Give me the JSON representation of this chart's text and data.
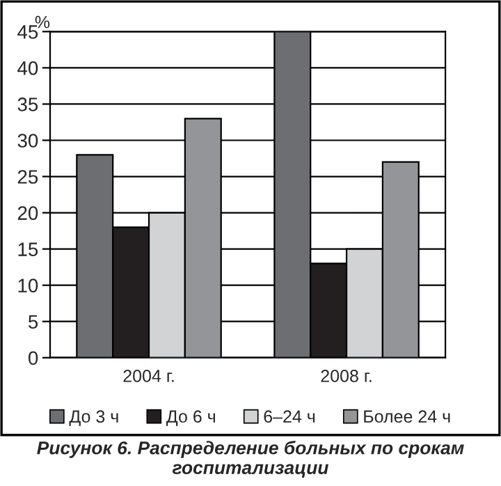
{
  "chart_data": {
    "type": "bar",
    "title": "Рисунок 6. Распределение больных по срокам госпитализации",
    "ylabel": "%",
    "categories": [
      "2004 г.",
      "2008 г."
    ],
    "series": [
      {
        "name": "До 3 ч",
        "color": "#6d6e71",
        "values": [
          28,
          45
        ]
      },
      {
        "name": "До 6 ч",
        "color": "#231f20",
        "values": [
          18,
          13
        ]
      },
      {
        "name": "6–24 ч",
        "color": "#d1d3d4",
        "values": [
          20,
          15
        ]
      },
      {
        "name": "Более 24 ч",
        "color": "#939598",
        "values": [
          33,
          27
        ]
      }
    ],
    "ylim": [
      0,
      45
    ],
    "yticks": [
      0,
      5,
      10,
      15,
      20,
      25,
      30,
      35,
      40,
      45
    ],
    "grid": "y",
    "legend": "bottom"
  }
}
